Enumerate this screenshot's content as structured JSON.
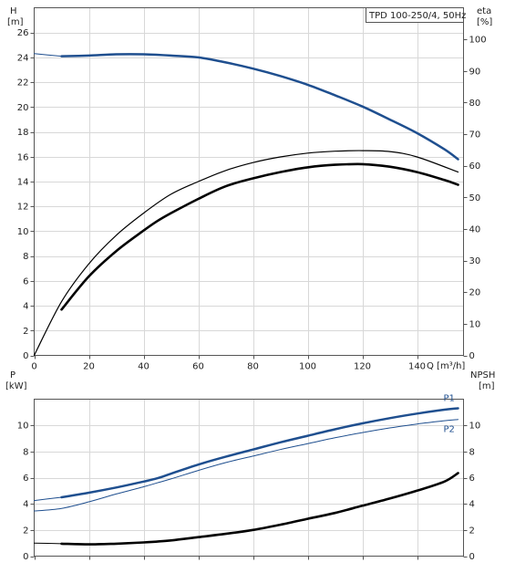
{
  "chart_data": [
    {
      "type": "line",
      "panel": "head-efficiency",
      "title": "TPD 100-250/4, 50Hz",
      "xlabel": "Q [m³/h]",
      "ylabel_left": "H\n[m]",
      "ylabel_right": "eta\n[%]",
      "xlim": [
        0,
        157
      ],
      "ylim_left": [
        0,
        28
      ],
      "ylim_right": [
        0,
        110
      ],
      "xticks": [
        0,
        20,
        40,
        60,
        80,
        100,
        120,
        140
      ],
      "yticks_left": [
        0,
        2,
        4,
        6,
        8,
        10,
        12,
        14,
        16,
        18,
        20,
        22,
        24,
        26
      ],
      "yticks_right": [
        0,
        10,
        20,
        30,
        40,
        50,
        60,
        70,
        80,
        90,
        100
      ],
      "grid": true,
      "series": [
        {
          "axis": "left",
          "color": "#1f4f8f",
          "width": 2.5,
          "dash": "",
          "x": [
            10,
            20,
            30,
            40,
            50,
            60,
            70,
            80,
            90,
            100,
            110,
            120,
            130,
            140,
            150,
            155
          ],
          "y": [
            24.1,
            24.15,
            24.25,
            24.25,
            24.15,
            24.0,
            23.6,
            23.1,
            22.5,
            21.8,
            20.95,
            20.05,
            19.0,
            17.9,
            16.6,
            15.8
          ]
        },
        {
          "axis": "left",
          "color": "#1f4f8f",
          "width": 1,
          "dash": "",
          "x": [
            0,
            10
          ],
          "y": [
            24.3,
            24.1
          ]
        },
        {
          "axis": "right",
          "color": "#000000",
          "width": 1.2,
          "dash": "",
          "x": [
            0,
            10,
            20,
            30,
            40,
            50,
            60,
            70,
            80,
            90,
            100,
            110,
            120,
            130,
            140,
            155
          ],
          "y": [
            0,
            17,
            29,
            38,
            45,
            51,
            55,
            58.5,
            61,
            62.8,
            64,
            64.6,
            64.8,
            64.5,
            62.8,
            58
          ]
        },
        {
          "axis": "right",
          "color": "#000000",
          "width": 2.6,
          "dash": "",
          "x": [
            10,
            20,
            30,
            40,
            45,
            50,
            60,
            70,
            80,
            90,
            100,
            110,
            120,
            130,
            140,
            150,
            155
          ],
          "y": [
            14.5,
            25,
            33,
            39.5,
            42.5,
            45,
            49.5,
            53.5,
            56,
            58,
            59.5,
            60.3,
            60.5,
            59.7,
            58,
            55.5,
            54
          ]
        }
      ]
    },
    {
      "type": "line",
      "panel": "power-npsh",
      "title": "",
      "xlabel": "",
      "ylabel_left": "P\n[kW]",
      "ylabel_right": "NPSH\n[m]",
      "xlim": [
        0,
        157
      ],
      "ylim_left": [
        0,
        12
      ],
      "ylim_right": [
        0,
        12
      ],
      "xticks": [
        0,
        20,
        40,
        60,
        80,
        100,
        120,
        140
      ],
      "yticks_left": [
        0,
        2,
        4,
        6,
        8,
        10
      ],
      "yticks_right": [
        0,
        2,
        4,
        6,
        8,
        10
      ],
      "grid": true,
      "labels": [
        "P1",
        "P2"
      ],
      "series": [
        {
          "name": "P1",
          "axis": "left",
          "color": "#1f4f8f",
          "width": 2.5,
          "dash": "",
          "x": [
            10,
            20,
            30,
            40,
            45,
            50,
            60,
            70,
            80,
            90,
            100,
            110,
            120,
            130,
            140,
            150,
            155
          ],
          "y": [
            4.5,
            4.85,
            5.25,
            5.7,
            5.95,
            6.3,
            7.0,
            7.6,
            8.15,
            8.7,
            9.2,
            9.7,
            10.15,
            10.55,
            10.9,
            11.2,
            11.3
          ]
        },
        {
          "axis": "left",
          "color": "#1f4f8f",
          "width": 1,
          "dash": "",
          "x": [
            0,
            10
          ],
          "y": [
            4.25,
            4.5
          ]
        },
        {
          "name": "P2",
          "axis": "left",
          "color": "#1f4f8f",
          "width": 1,
          "dash": "",
          "x": [
            0,
            10,
            20,
            30,
            40,
            45,
            50,
            60,
            70,
            80,
            90,
            100,
            110,
            120,
            130,
            140,
            150,
            155
          ],
          "y": [
            3.45,
            3.65,
            4.15,
            4.75,
            5.3,
            5.6,
            5.9,
            6.55,
            7.15,
            7.65,
            8.15,
            8.6,
            9.05,
            9.45,
            9.8,
            10.1,
            10.35,
            10.45
          ]
        },
        {
          "axis": "right",
          "color": "#000000",
          "width": 2.6,
          "dash": "",
          "x": [
            10,
            20,
            30,
            40,
            50,
            60,
            70,
            80,
            90,
            100,
            110,
            120,
            130,
            140,
            150,
            155
          ],
          "y": [
            0.95,
            0.9,
            0.95,
            1.05,
            1.2,
            1.45,
            1.7,
            2.0,
            2.4,
            2.85,
            3.3,
            3.85,
            4.4,
            5.0,
            5.7,
            6.35
          ]
        },
        {
          "axis": "right",
          "color": "#000000",
          "width": 1,
          "dash": "",
          "x": [
            0,
            10
          ],
          "y": [
            1.0,
            0.95
          ]
        }
      ]
    }
  ]
}
